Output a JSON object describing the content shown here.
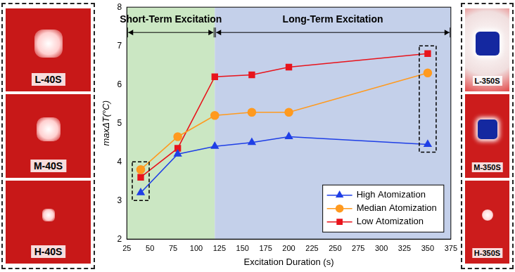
{
  "chart_data": {
    "type": "line",
    "x_label": "Excitation Duration (s)",
    "y_label": "maxΔT(°C)",
    "xlim": [
      25,
      375
    ],
    "xticks": [
      25,
      50,
      75,
      100,
      125,
      150,
      175,
      200,
      225,
      250,
      275,
      300,
      325,
      350,
      375
    ],
    "ylim": [
      2,
      8
    ],
    "yticks": [
      2,
      3,
      4,
      5,
      6,
      7,
      8
    ],
    "grid": false,
    "legend": "lower right",
    "regions": [
      {
        "label": "Short-Term Excitation",
        "start": 25,
        "end": 120,
        "color": "#cbe7c3"
      },
      {
        "label": "Long-Term Excitation",
        "start": 120,
        "end": 375,
        "color": "#c4d0ea"
      }
    ],
    "x": [
      40,
      80,
      120,
      160,
      200,
      350
    ],
    "series": [
      {
        "name": "High Atomization",
        "color": "#1f3fe6",
        "marker": "triangle",
        "values": [
          3.2,
          4.2,
          4.4,
          4.5,
          4.65,
          4.45
        ]
      },
      {
        "name": "Median Atomization",
        "color": "#ff9a1f",
        "marker": "circle",
        "values": [
          3.8,
          4.65,
          5.2,
          5.28,
          5.28,
          6.3
        ]
      },
      {
        "name": "Low Atomization",
        "color": "#e8141c",
        "marker": "square",
        "values": [
          3.6,
          4.35,
          6.2,
          6.25,
          6.45,
          6.8
        ]
      }
    ]
  },
  "panels": {
    "left": [
      {
        "label": "L-40S"
      },
      {
        "label": "M-40S"
      },
      {
        "label": "H-40S"
      }
    ],
    "right": [
      {
        "label": "L-350S"
      },
      {
        "label": "M-350S"
      },
      {
        "label": "H-350S"
      }
    ]
  }
}
